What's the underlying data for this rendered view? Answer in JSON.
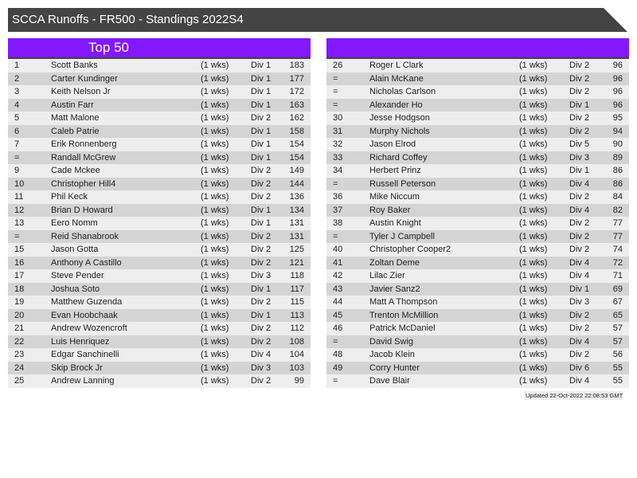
{
  "title": "SCCA Runoffs - FR500 - Standings 2022S4",
  "left_header": "Top 50",
  "right_header": "",
  "updated": "Updated 22-Oct-2022 22:08:53 GMT",
  "left_rows": [
    [
      "1",
      "Scott Banks",
      "(1 wks)",
      "Div 1",
      "183"
    ],
    [
      "2",
      "Carter Kundinger",
      "(1 wks)",
      "Div 1",
      "177"
    ],
    [
      "3",
      "Keith Nelson Jr",
      "(1 wks)",
      "Div 1",
      "172"
    ],
    [
      "4",
      "Austin Farr",
      "(1 wks)",
      "Div 1",
      "163"
    ],
    [
      "5",
      "Matt Malone",
      "(1 wks)",
      "Div 2",
      "162"
    ],
    [
      "6",
      "Caleb Patrie",
      "(1 wks)",
      "Div 1",
      "158"
    ],
    [
      "7",
      "Erik Ronnenberg",
      "(1 wks)",
      "Div 1",
      "154"
    ],
    [
      "=",
      "Randall McGrew",
      "(1 wks)",
      "Div 1",
      "154"
    ],
    [
      "9",
      "Cade Mckee",
      "(1 wks)",
      "Div 2",
      "149"
    ],
    [
      "10",
      "Christopher Hill4",
      "(1 wks)",
      "Div 2",
      "144"
    ],
    [
      "11",
      "Phil Keck",
      "(1 wks)",
      "Div 2",
      "136"
    ],
    [
      "12",
      "Brian D Howard",
      "(1 wks)",
      "Div 1",
      "134"
    ],
    [
      "13",
      "Eero Nomm",
      "(1 wks)",
      "Div 1",
      "131"
    ],
    [
      "=",
      "Reid Shanabrook",
      "(1 wks)",
      "Div 2",
      "131"
    ],
    [
      "15",
      "Jason Gotta",
      "(1 wks)",
      "Div 2",
      "125"
    ],
    [
      "16",
      "Anthony A Castillo",
      "(1 wks)",
      "Div 2",
      "121"
    ],
    [
      "17",
      "Steve Pender",
      "(1 wks)",
      "Div 3",
      "118"
    ],
    [
      "18",
      "Joshua Soto",
      "(1 wks)",
      "Div 1",
      "117"
    ],
    [
      "19",
      "Matthew Guzenda",
      "(1 wks)",
      "Div 2",
      "115"
    ],
    [
      "20",
      "Evan Hoobchaak",
      "(1 wks)",
      "Div 1",
      "113"
    ],
    [
      "21",
      "Andrew Wozencroft",
      "(1 wks)",
      "Div 2",
      "112"
    ],
    [
      "22",
      "Luis Henriquez",
      "(1 wks)",
      "Div 2",
      "108"
    ],
    [
      "23",
      "Edgar Sanchinelli",
      "(1 wks)",
      "Div 4",
      "104"
    ],
    [
      "24",
      "Skip Brock Jr",
      "(1 wks)",
      "Div 3",
      "103"
    ],
    [
      "25",
      "Andrew Lanning",
      "(1 wks)",
      "Div 2",
      "99"
    ]
  ],
  "right_rows": [
    [
      "26",
      "Roger L Clark",
      "(1 wks)",
      "Div 2",
      "96"
    ],
    [
      "=",
      "Alain McKane",
      "(1 wks)",
      "Div 2",
      "96"
    ],
    [
      "=",
      "Nicholas Carlson",
      "(1 wks)",
      "Div 2",
      "96"
    ],
    [
      "=",
      "Alexander Ho",
      "(1 wks)",
      "Div 1",
      "96"
    ],
    [
      "30",
      "Jesse Hodgson",
      "(1 wks)",
      "Div 2",
      "95"
    ],
    [
      "31",
      "Murphy Nichols",
      "(1 wks)",
      "Div 2",
      "94"
    ],
    [
      "32",
      "Jason Elrod",
      "(1 wks)",
      "Div 5",
      "90"
    ],
    [
      "33",
      "Richard Coffey",
      "(1 wks)",
      "Div 3",
      "89"
    ],
    [
      "34",
      "Herbert Prinz",
      "(1 wks)",
      "Div 1",
      "86"
    ],
    [
      "=",
      "Russell Peterson",
      "(1 wks)",
      "Div 4",
      "86"
    ],
    [
      "36",
      "Mike Niccum",
      "(1 wks)",
      "Div 2",
      "84"
    ],
    [
      "37",
      "Roy Baker",
      "(1 wks)",
      "Div 4",
      "82"
    ],
    [
      "38",
      "Austin Knight",
      "(1 wks)",
      "Div 2",
      "77"
    ],
    [
      "=",
      "Tyler J Campbell",
      "(1 wks)",
      "Div 2",
      "77"
    ],
    [
      "40",
      "Christopher Cooper2",
      "(1 wks)",
      "Div 2",
      "74"
    ],
    [
      "41",
      "Zoltan Deme",
      "(1 wks)",
      "Div 4",
      "72"
    ],
    [
      "42",
      "Lilac Zier",
      "(1 wks)",
      "Div 4",
      "71"
    ],
    [
      "43",
      "Javier Sanz2",
      "(1 wks)",
      "Div 1",
      "69"
    ],
    [
      "44",
      "Matt A Thompson",
      "(1 wks)",
      "Div 3",
      "67"
    ],
    [
      "45",
      "Trenton McMillion",
      "(1 wks)",
      "Div 2",
      "65"
    ],
    [
      "46",
      "Patrick McDaniel",
      "(1 wks)",
      "Div 2",
      "57"
    ],
    [
      "=",
      "David Swig",
      "(1 wks)",
      "Div 4",
      "57"
    ],
    [
      "48",
      "Jacob Klein",
      "(1 wks)",
      "Div 2",
      "56"
    ],
    [
      "49",
      "Corry Hunter",
      "(1 wks)",
      "Div 6",
      "55"
    ],
    [
      "=",
      "Dave Blair",
      "(1 wks)",
      "Div 4",
      "55"
    ]
  ]
}
